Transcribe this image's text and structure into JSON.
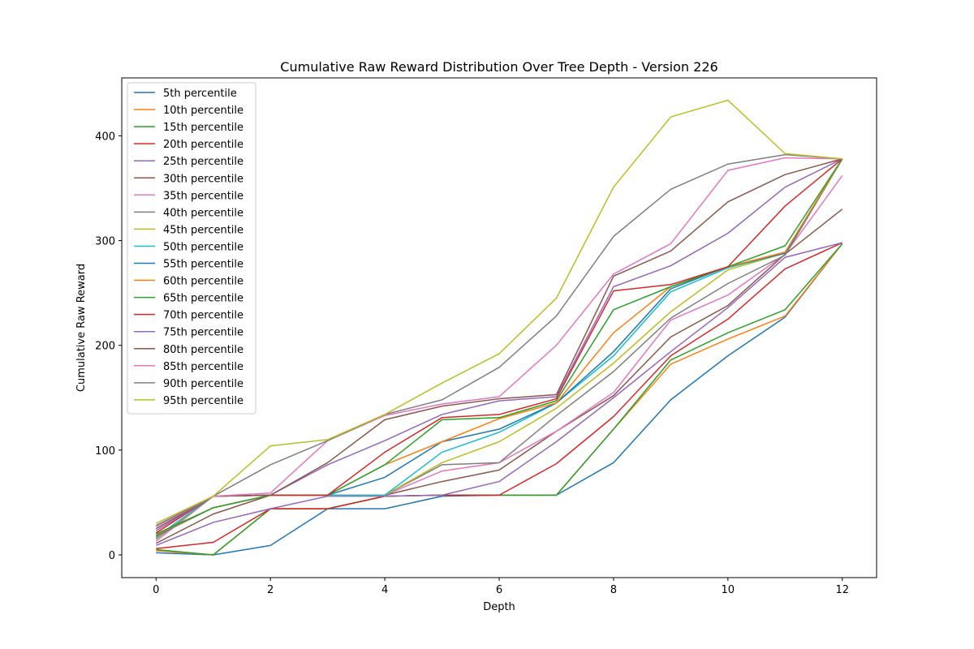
{
  "chart_data": {
    "type": "line",
    "title": "Cumulative Raw Reward Distribution Over Tree Depth - Version 226",
    "xlabel": "Depth",
    "ylabel": "Cumulative Raw Reward",
    "xlim": [
      -0.6,
      12.6
    ],
    "ylim": [
      -21.7,
      455.3
    ],
    "xticks": [
      0,
      2,
      4,
      6,
      8,
      10,
      12
    ],
    "yticks": [
      0,
      100,
      200,
      300,
      400
    ],
    "grid": false,
    "legend_position": "upper-left",
    "x": [
      0,
      1,
      2,
      3,
      4,
      5,
      6,
      7,
      8,
      9,
      10,
      11,
      12
    ],
    "series": [
      {
        "name": "5th percentile",
        "color": "#1f77b4",
        "values": [
          2,
          0,
          9,
          44,
          44,
          56,
          57,
          57,
          88,
          148,
          190,
          227,
          297
        ]
      },
      {
        "name": "10th percentile",
        "color": "#ff7f0e",
        "values": [
          4,
          0,
          44,
          44,
          56,
          57,
          57,
          57,
          120,
          182,
          206,
          228,
          297
        ]
      },
      {
        "name": "15th percentile",
        "color": "#2ca02c",
        "values": [
          5,
          0,
          44,
          44,
          56,
          57,
          57,
          57,
          120,
          186,
          212,
          234,
          297
        ]
      },
      {
        "name": "20th percentile",
        "color": "#d62728",
        "values": [
          6,
          12,
          44,
          44,
          56,
          57,
          57,
          87,
          132,
          190,
          225,
          273,
          298
        ]
      },
      {
        "name": "25th percentile",
        "color": "#9467bd",
        "values": [
          9,
          31,
          44,
          56,
          56,
          57,
          70,
          108,
          150,
          194,
          236,
          284,
          298
        ]
      },
      {
        "name": "30th percentile",
        "color": "#8c564b",
        "values": [
          11,
          39,
          57,
          57,
          57,
          70,
          81,
          118,
          152,
          208,
          238,
          287,
          330
        ]
      },
      {
        "name": "35th percentile",
        "color": "#e377c2",
        "values": [
          13,
          56,
          57,
          57,
          57,
          80,
          88,
          118,
          155,
          224,
          248,
          287,
          362
        ]
      },
      {
        "name": "40th percentile",
        "color": "#7f7f7f",
        "values": [
          15,
          56,
          57,
          57,
          57,
          86,
          88,
          133,
          175,
          226,
          259,
          286,
          378
        ]
      },
      {
        "name": "45th percentile",
        "color": "#bcbd22",
        "values": [
          16,
          56,
          57,
          57,
          57,
          88,
          108,
          140,
          183,
          232,
          272,
          288,
          378
        ]
      },
      {
        "name": "50th percentile",
        "color": "#17becf",
        "values": [
          17,
          56,
          57,
          57,
          57,
          98,
          117,
          145,
          190,
          251,
          274,
          288,
          378
        ]
      },
      {
        "name": "55th percentile",
        "color": "#1f77b4",
        "values": [
          18,
          45,
          57,
          57,
          74,
          108,
          120,
          145,
          194,
          254,
          275,
          288,
          378
        ]
      },
      {
        "name": "60th percentile",
        "color": "#ff7f0e",
        "values": [
          19,
          45,
          57,
          57,
          86,
          108,
          130,
          145,
          212,
          256,
          275,
          289,
          378
        ]
      },
      {
        "name": "65th percentile",
        "color": "#2ca02c",
        "values": [
          20,
          45,
          57,
          57,
          86,
          129,
          131,
          147,
          234,
          256,
          275,
          295,
          378
        ]
      },
      {
        "name": "70th percentile",
        "color": "#d62728",
        "values": [
          21,
          56,
          57,
          57,
          98,
          131,
          134,
          149,
          252,
          258,
          275,
          333,
          378
        ]
      },
      {
        "name": "75th percentile",
        "color": "#9467bd",
        "values": [
          23,
          56,
          57,
          86,
          109,
          134,
          147,
          151,
          256,
          276,
          307,
          351,
          378
        ]
      },
      {
        "name": "80th percentile",
        "color": "#8c564b",
        "values": [
          25,
          56,
          57,
          88,
          129,
          142,
          149,
          153,
          266,
          290,
          337,
          363,
          378
        ]
      },
      {
        "name": "85th percentile",
        "color": "#e377c2",
        "values": [
          27,
          56,
          59,
          109,
          133,
          144,
          151,
          200,
          268,
          297,
          367,
          379,
          378
        ]
      },
      {
        "name": "90th percentile",
        "color": "#7f7f7f",
        "values": [
          28,
          56,
          86,
          109,
          134,
          148,
          179,
          228,
          304,
          349,
          373,
          382,
          378
        ]
      },
      {
        "name": "95th percentile",
        "color": "#bcbd22",
        "values": [
          30,
          56,
          104,
          110,
          134,
          164,
          192,
          245,
          351,
          418,
          434,
          383,
          378
        ]
      }
    ]
  }
}
